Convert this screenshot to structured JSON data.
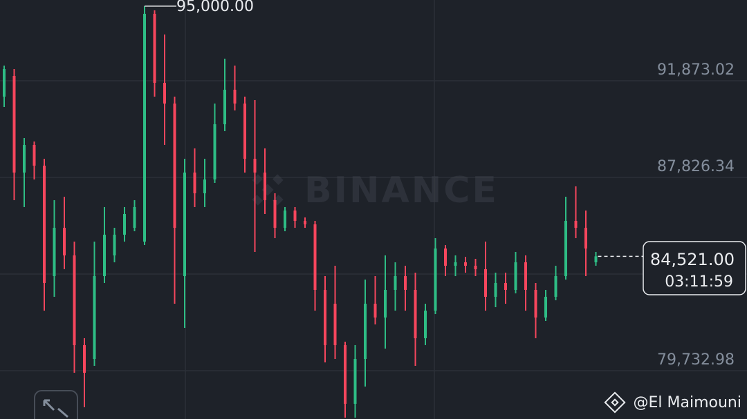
{
  "chart_data": {
    "type": "candlestick",
    "ylim": [
      77709.5,
      95254.9
    ],
    "yticks": [
      {
        "value": 91873.02,
        "label": "91,873.02"
      },
      {
        "value": 87826.34,
        "label": "87,826.34"
      },
      {
        "value": 83779.66,
        "label": null
      },
      {
        "value": 79732.98,
        "label": "79,732.98"
      }
    ],
    "grid": true,
    "up_color": "#2ebd85",
    "down_color": "#f6465d",
    "open": [
      91208,
      92075,
      88029,
      89185,
      88318,
      83693,
      85716,
      84560,
      80803,
      80224,
      83693,
      84560,
      85427,
      85716,
      85138,
      94677,
      91786,
      90919,
      83693,
      88029,
      87162,
      87740,
      90052,
      91497,
      90919,
      88607,
      88029,
      86873,
      85716,
      86440,
      86005,
      85861,
      83115,
      82537,
      80803,
      78346,
      80224,
      82537,
      81959,
      83115,
      83693,
      83115,
      81092,
      82248,
      84849,
      84127,
      84271,
      84127,
      83982,
      82826,
      83404,
      83115,
      84271,
      83115,
      81959,
      82826,
      83693,
      86005,
      85716,
      84271
    ],
    "high": [
      92509,
      92364,
      89474,
      89329,
      88607,
      86873,
      87017,
      85138,
      81092,
      85138,
      86584,
      85716,
      86584,
      86873,
      95000,
      94821,
      93810,
      91208,
      88607,
      89040,
      88607,
      90919,
      92798,
      92509,
      91208,
      91064,
      89040,
      87162,
      86584,
      86584,
      86150,
      86005,
      83693,
      84127,
      80947,
      80803,
      83549,
      83693,
      84560,
      84271,
      84127,
      83838,
      82537,
      85283,
      84994,
      84560,
      84502,
      84416,
      85138,
      83838,
      83838,
      84705,
      84560,
      83404,
      83115,
      84127,
      87017,
      87451,
      86440,
      84705
    ],
    "low": [
      90775,
      86873,
      86584,
      87740,
      82248,
      82826,
      83982,
      79646,
      78201,
      79935,
      83404,
      84271,
      85138,
      85572,
      84994,
      91208,
      89185,
      82537,
      81525,
      86584,
      86584,
      87595,
      89763,
      90630,
      88029,
      84705,
      86294,
      85283,
      85572,
      85716,
      85716,
      82248,
      80080,
      80224,
      77767,
      77767,
      79068,
      81670,
      80658,
      82248,
      82248,
      79935,
      80803,
      82103,
      83693,
      83693,
      83838,
      83693,
      82248,
      82392,
      82537,
      82971,
      82248,
      81092,
      81814,
      82681,
      83549,
      85283,
      83693,
      84127
    ],
    "close": [
      92364,
      88029,
      89185,
      88318,
      83404,
      85716,
      84560,
      80803,
      79646,
      83693,
      85427,
      85427,
      86294,
      86584,
      94677,
      91786,
      90919,
      85716,
      88029,
      87162,
      87740,
      90052,
      91497,
      90919,
      88607,
      88029,
      86873,
      85716,
      86440,
      86005,
      85861,
      83115,
      80803,
      80803,
      78346,
      80224,
      82537,
      81959,
      83115,
      83693,
      83115,
      81092,
      82248,
      84849,
      84127,
      84271,
      84127,
      83982,
      82826,
      83404,
      83115,
      84271,
      83115,
      81959,
      82826,
      83693,
      86005,
      85716,
      84849,
      84521
    ],
    "high_label": "95,000.00",
    "last_price_label": "84,521.00",
    "countdown": "03:11:59",
    "watermark": "BINANCE",
    "credit": "@El Maimouni"
  }
}
